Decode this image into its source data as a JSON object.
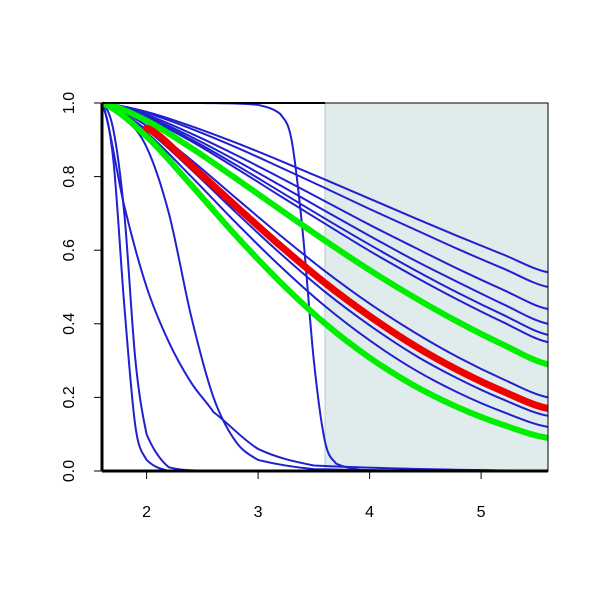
{
  "chart_data": {
    "type": "line",
    "xlim": [
      1.6,
      5.6
    ],
    "ylim": [
      0,
      1
    ],
    "xticks": [
      2,
      3,
      4,
      5
    ],
    "yticks": [
      {
        "value": 0,
        "label": "0.0"
      },
      {
        "value": 0.2,
        "label": "0.2"
      },
      {
        "value": 0.4,
        "label": "0.4"
      },
      {
        "value": 0.6,
        "label": "0.6"
      },
      {
        "value": 0.8,
        "label": "0.8"
      },
      {
        "value": 1,
        "label": "1.0"
      }
    ],
    "shaded_region": [
      3.6,
      5.6
    ],
    "shade_color": "#dfeceb",
    "series": [
      {
        "color": "#2020d0",
        "line_width": 2,
        "x": [
          1.6,
          2.0,
          2.4,
          2.8,
          3.2,
          3.6,
          4.0,
          4.4,
          4.8,
          5.2,
          5.6
        ],
        "values": [
          1,
          0.976,
          0.937,
          0.892,
          0.843,
          0.792,
          0.74,
          0.688,
          0.637,
          0.588,
          0.54
        ]
      },
      {
        "color": "#2020d0",
        "line_width": 2,
        "x": [
          1.6,
          2.0,
          2.4,
          2.8,
          3.2,
          3.6,
          4.0,
          4.4,
          4.8,
          5.2,
          5.6
        ],
        "values": [
          1,
          0.973,
          0.93,
          0.88,
          0.825,
          0.769,
          0.712,
          0.657,
          0.602,
          0.55,
          0.5
        ]
      },
      {
        "color": "#2020d0",
        "line_width": 2,
        "x": [
          1.6,
          2.0,
          2.4,
          2.8,
          3.2,
          3.6,
          4.0,
          4.4,
          4.8,
          5.2,
          5.6
        ],
        "values": [
          1,
          0.968,
          0.917,
          0.859,
          0.797,
          0.733,
          0.669,
          0.608,
          0.548,
          0.492,
          0.44
        ]
      },
      {
        "color": "#2020d0",
        "line_width": 2,
        "x": [
          1.6,
          2.0,
          2.4,
          2.8,
          3.2,
          3.6,
          4.0,
          4.4,
          4.8,
          5.2,
          5.6
        ],
        "values": [
          1,
          0.964,
          0.908,
          0.844,
          0.776,
          0.707,
          0.639,
          0.573,
          0.512,
          0.453,
          0.4
        ]
      },
      {
        "color": "#2020d0",
        "line_width": 2,
        "x": [
          1.6,
          2.0,
          2.4,
          2.8,
          3.2,
          3.6,
          4.0,
          4.4,
          4.8,
          5.2,
          5.6
        ],
        "values": [
          1,
          0.961,
          0.901,
          0.832,
          0.759,
          0.686,
          0.615,
          0.547,
          0.483,
          0.424,
          0.37
        ]
      },
      {
        "color": "#2020d0",
        "line_width": 2,
        "x": [
          1.6,
          2.0,
          2.4,
          2.8,
          3.2,
          3.6,
          4.0,
          4.4,
          4.8,
          5.2,
          5.6
        ],
        "values": [
          1,
          0.959,
          0.896,
          0.823,
          0.747,
          0.672,
          0.598,
          0.529,
          0.464,
          0.404,
          0.35
        ]
      },
      {
        "color": "#2020d0",
        "line_width": 2,
        "x": [
          1.6,
          2.0,
          2.4,
          2.8,
          3.2,
          3.6,
          4.0,
          4.4,
          4.8,
          5.2,
          5.6
        ],
        "values": [
          1,
          0.938,
          0.845,
          0.742,
          0.64,
          0.543,
          0.455,
          0.377,
          0.308,
          0.249,
          0.2
        ]
      },
      {
        "color": "#2020d0",
        "line_width": 2,
        "x": [
          1.6,
          2.0,
          2.4,
          2.8,
          3.2,
          3.6,
          4.0,
          4.4,
          4.8,
          5.2,
          5.6
        ],
        "values": [
          1,
          0.927,
          0.819,
          0.703,
          0.591,
          0.487,
          0.396,
          0.316,
          0.25,
          0.194,
          0.15
        ]
      },
      {
        "color": "#2020d0",
        "line_width": 2,
        "x": [
          1.6,
          2.0,
          2.4,
          2.8,
          3.2,
          3.6,
          4.0,
          4.4,
          4.8,
          5.2,
          5.6
        ],
        "values": [
          1,
          0.919,
          0.8,
          0.675,
          0.556,
          0.448,
          0.355,
          0.276,
          0.212,
          0.16,
          0.12
        ]
      },
      {
        "color": "#2020d0",
        "line_width": 2,
        "x": [
          1.6,
          1.7,
          1.8,
          1.9,
          2.0,
          2.2,
          2.6,
          5.6
        ],
        "values": [
          1,
          0.85,
          0.45,
          0.12,
          0.03,
          0,
          0,
          0
        ]
      },
      {
        "color": "#2020d0",
        "line_width": 2,
        "x": [
          1.6,
          1.7,
          1.8,
          1.9,
          2.0,
          2.2,
          2.6,
          5.6
        ],
        "values": [
          1,
          0.93,
          0.7,
          0.3,
          0.1,
          0.01,
          0,
          0
        ]
      },
      {
        "color": "#2020d0",
        "line_width": 2,
        "x": [
          1.6,
          1.8,
          2.0,
          2.2,
          2.4,
          2.6,
          3.0,
          3.5,
          5.6
        ],
        "values": [
          1,
          0.72,
          0.5,
          0.35,
          0.24,
          0.16,
          0.06,
          0.015,
          0
        ]
      },
      {
        "color": "#2020d0",
        "line_width": 2,
        "x": [
          1.6,
          1.8,
          2.0,
          2.2,
          2.4,
          2.6,
          2.8,
          3.0,
          3.5,
          5.6
        ],
        "values": [
          1,
          0.96,
          0.88,
          0.7,
          0.42,
          0.2,
          0.08,
          0.03,
          0.005,
          0
        ]
      },
      {
        "color": "#2020d0",
        "line_width": 2,
        "x": [
          1.6,
          2.5,
          3.0,
          3.2,
          3.3,
          3.4,
          3.5,
          3.6,
          3.7,
          4.0,
          5.6
        ],
        "values": [
          1,
          1,
          0.995,
          0.97,
          0.9,
          0.65,
          0.3,
          0.08,
          0.02,
          0,
          0
        ]
      },
      {
        "color": "#00ee00",
        "line_width": 6,
        "x": [
          1.6,
          2.0,
          2.4,
          2.8,
          3.2,
          3.6,
          4.0,
          4.4,
          4.8,
          5.2,
          5.6
        ],
        "values": [
          1,
          0.952,
          0.878,
          0.795,
          0.71,
          0.626,
          0.546,
          0.472,
          0.404,
          0.343,
          0.29
        ]
      },
      {
        "color": "#00ee00",
        "line_width": 6,
        "x": [
          1.6,
          2.0,
          2.4,
          2.8,
          3.2,
          3.6,
          4.0,
          4.4,
          4.8,
          5.2,
          5.6
        ],
        "values": [
          1,
          0.909,
          0.777,
          0.64,
          0.513,
          0.401,
          0.308,
          0.232,
          0.172,
          0.125,
          0.09
        ]
      },
      {
        "color": "#ee0000",
        "line_width": 7,
        "x": [
          2.0,
          2.4,
          2.8,
          3.2,
          3.6,
          4.0,
          4.4,
          4.8,
          5.2,
          5.6
        ],
        "values": [
          0.932,
          0.83,
          0.72,
          0.612,
          0.511,
          0.421,
          0.341,
          0.273,
          0.216,
          0.17
        ]
      }
    ]
  }
}
